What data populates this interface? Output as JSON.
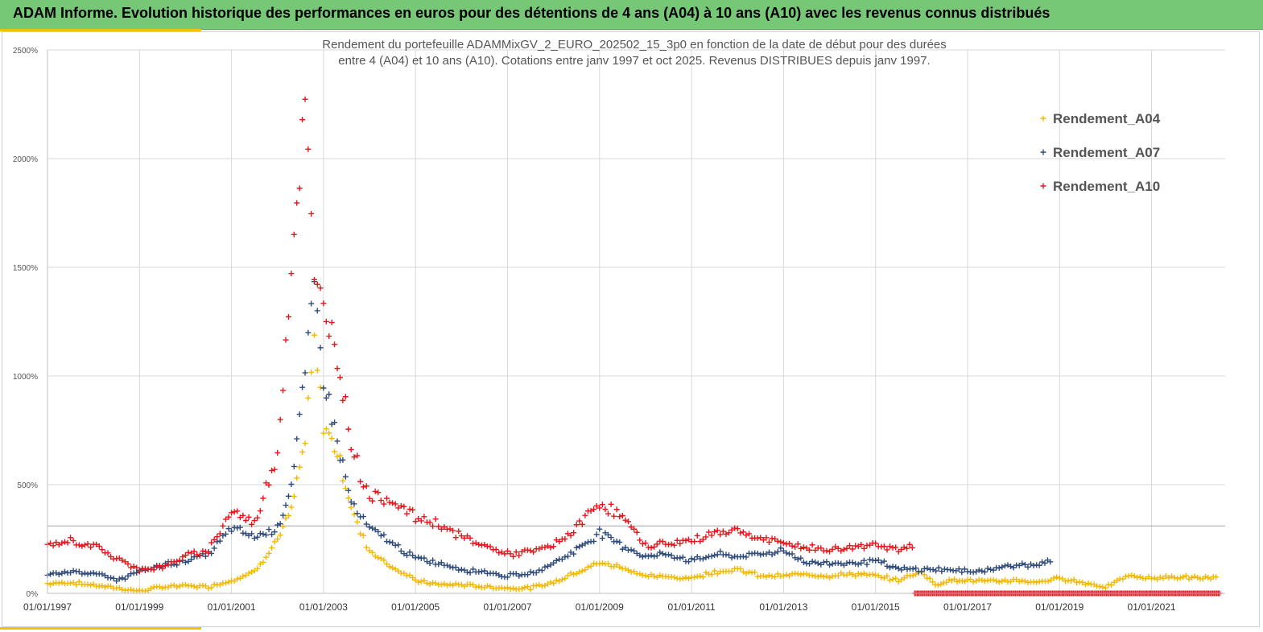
{
  "banner": {
    "title": "ADAM Informe. Evolution historique des performances en euros pour des détentions de 4 ans (A04) à 10 ans (A10) avec les revenus connus distribués"
  },
  "colors": {
    "banner_bg": "#76c776",
    "accent": "#f2c200",
    "A04": "#f5b800",
    "A07": "#2f4b7c",
    "A10": "#e8141b"
  },
  "chart_data": {
    "type": "scatter",
    "title_line1": "Rendement du portefeuille ADAMMixGV_2_EURO_202502_15_3p0 en fonction de la date de début pour des durées",
    "title_line2": "entre 4 (A04) et 10 ans (A10). Cotations entre janv 1997 et oct 2025. Revenus DISTRIBUES depuis janv 1997.",
    "xlabel": "",
    "ylabel": "",
    "xlim": [
      1997.0,
      2022.6
    ],
    "ylim": [
      0,
      2500
    ],
    "grid": true,
    "legend_position": "top-right",
    "x_tick_labels": [
      "01/01/1997",
      "01/01/1999",
      "01/01/2001",
      "01/01/2003",
      "01/01/2005",
      "01/01/2007",
      "01/01/2009",
      "01/01/2011",
      "01/01/2013",
      "01/01/2015",
      "01/01/2017",
      "01/01/2019",
      "01/01/2021"
    ],
    "x_tick_values": [
      1997,
      1999,
      2001,
      2003,
      2005,
      2007,
      2009,
      2011,
      2013,
      2015,
      2017,
      2019,
      2021
    ],
    "y_tick_labels": [
      "0%",
      "500%",
      "1000%",
      "1500%",
      "2000%",
      "2500%"
    ],
    "y_tick_values": [
      0,
      500,
      1000,
      1500,
      2000,
      2500
    ],
    "reference_line_y": 310,
    "series": [
      {
        "name": "Rendement_A04",
        "color": "#f5b800",
        "points": [
          [
            1997.0,
            45
          ],
          [
            1997.5,
            50
          ],
          [
            1998.0,
            38
          ],
          [
            1998.5,
            25
          ],
          [
            1999.0,
            10
          ],
          [
            1999.5,
            30
          ],
          [
            2000.0,
            35
          ],
          [
            2000.5,
            30
          ],
          [
            2001.0,
            60
          ],
          [
            2001.5,
            100
          ],
          [
            2002.0,
            250
          ],
          [
            2002.3,
            380
          ],
          [
            2002.6,
            700
          ],
          [
            2002.8,
            1150
          ],
          [
            2003.0,
            780
          ],
          [
            2003.3,
            650
          ],
          [
            2003.6,
            400
          ],
          [
            2003.8,
            280
          ],
          [
            2004.0,
            200
          ],
          [
            2004.5,
            120
          ],
          [
            2005.0,
            60
          ],
          [
            2005.5,
            40
          ],
          [
            2006.0,
            40
          ],
          [
            2006.5,
            30
          ],
          [
            2007.0,
            25
          ],
          [
            2007.5,
            25
          ],
          [
            2008.0,
            50
          ],
          [
            2008.5,
            100
          ],
          [
            2009.0,
            140
          ],
          [
            2009.5,
            120
          ],
          [
            2010.0,
            80
          ],
          [
            2010.5,
            75
          ],
          [
            2011.0,
            70
          ],
          [
            2011.5,
            100
          ],
          [
            2012.0,
            110
          ],
          [
            2012.5,
            80
          ],
          [
            2013.0,
            80
          ],
          [
            2013.5,
            90
          ],
          [
            2014.0,
            80
          ],
          [
            2014.5,
            90
          ],
          [
            2015.0,
            80
          ],
          [
            2015.5,
            60
          ],
          [
            2016.0,
            100
          ],
          [
            2016.3,
            40
          ],
          [
            2016.6,
            60
          ],
          [
            2017.0,
            60
          ],
          [
            2017.5,
            55
          ],
          [
            2018.0,
            60
          ],
          [
            2018.5,
            50
          ],
          [
            2019.0,
            70
          ],
          [
            2019.5,
            50
          ],
          [
            2020.0,
            30
          ],
          [
            2020.5,
            80
          ],
          [
            2021.0,
            70
          ],
          [
            2021.5,
            75
          ],
          [
            2022.0,
            70
          ],
          [
            2022.4,
            75
          ]
        ]
      },
      {
        "name": "Rendement_A07",
        "color": "#2f4b7c",
        "points": [
          [
            1997.0,
            80
          ],
          [
            1997.5,
            100
          ],
          [
            1998.0,
            95
          ],
          [
            1998.5,
            60
          ],
          [
            1999.0,
            100
          ],
          [
            1999.5,
            130
          ],
          [
            2000.0,
            150
          ],
          [
            2000.5,
            180
          ],
          [
            2001.0,
            300
          ],
          [
            2001.5,
            260
          ],
          [
            2002.0,
            300
          ],
          [
            2002.3,
            500
          ],
          [
            2002.6,
            1000
          ],
          [
            2002.8,
            1400
          ],
          [
            2003.0,
            1000
          ],
          [
            2003.3,
            700
          ],
          [
            2003.6,
            420
          ],
          [
            2003.8,
            350
          ],
          [
            2004.0,
            300
          ],
          [
            2004.5,
            230
          ],
          [
            2005.0,
            160
          ],
          [
            2005.5,
            140
          ],
          [
            2006.0,
            110
          ],
          [
            2006.5,
            100
          ],
          [
            2007.0,
            80
          ],
          [
            2007.5,
            90
          ],
          [
            2008.0,
            140
          ],
          [
            2008.5,
            200
          ],
          [
            2009.0,
            280
          ],
          [
            2009.5,
            220
          ],
          [
            2010.0,
            170
          ],
          [
            2010.5,
            180
          ],
          [
            2011.0,
            150
          ],
          [
            2011.5,
            180
          ],
          [
            2012.0,
            170
          ],
          [
            2012.5,
            180
          ],
          [
            2013.0,
            200
          ],
          [
            2013.5,
            140
          ],
          [
            2014.0,
            140
          ],
          [
            2014.5,
            140
          ],
          [
            2015.0,
            150
          ],
          [
            2015.5,
            110
          ],
          [
            2016.0,
            110
          ],
          [
            2016.5,
            110
          ],
          [
            2017.0,
            100
          ],
          [
            2017.5,
            110
          ],
          [
            2018.0,
            130
          ],
          [
            2018.5,
            130
          ],
          [
            2018.8,
            145
          ]
        ]
      },
      {
        "name": "Rendement_A10",
        "color": "#e8141b",
        "points": [
          [
            1997.0,
            220
          ],
          [
            1997.5,
            240
          ],
          [
            1998.0,
            220
          ],
          [
            1998.5,
            160
          ],
          [
            1999.0,
            110
          ],
          [
            1999.5,
            120
          ],
          [
            2000.0,
            170
          ],
          [
            2000.5,
            200
          ],
          [
            2001.0,
            380
          ],
          [
            2001.5,
            320
          ],
          [
            2002.0,
            650
          ],
          [
            2002.3,
            1500
          ],
          [
            2002.6,
            2250
          ],
          [
            2002.8,
            1400
          ],
          [
            2003.0,
            1350
          ],
          [
            2003.3,
            1100
          ],
          [
            2003.6,
            700
          ],
          [
            2003.8,
            550
          ],
          [
            2004.0,
            450
          ],
          [
            2004.5,
            430
          ],
          [
            2005.0,
            350
          ],
          [
            2005.5,
            320
          ],
          [
            2006.0,
            260
          ],
          [
            2006.5,
            220
          ],
          [
            2007.0,
            180
          ],
          [
            2007.5,
            190
          ],
          [
            2008.0,
            220
          ],
          [
            2008.5,
            300
          ],
          [
            2009.0,
            420
          ],
          [
            2009.5,
            350
          ],
          [
            2010.0,
            220
          ],
          [
            2010.5,
            230
          ],
          [
            2011.0,
            240
          ],
          [
            2011.5,
            280
          ],
          [
            2012.0,
            290
          ],
          [
            2012.5,
            250
          ],
          [
            2013.0,
            230
          ],
          [
            2013.5,
            210
          ],
          [
            2014.0,
            200
          ],
          [
            2014.5,
            210
          ],
          [
            2015.0,
            230
          ],
          [
            2015.5,
            200
          ],
          [
            2015.8,
            210
          ]
        ]
      }
    ]
  }
}
